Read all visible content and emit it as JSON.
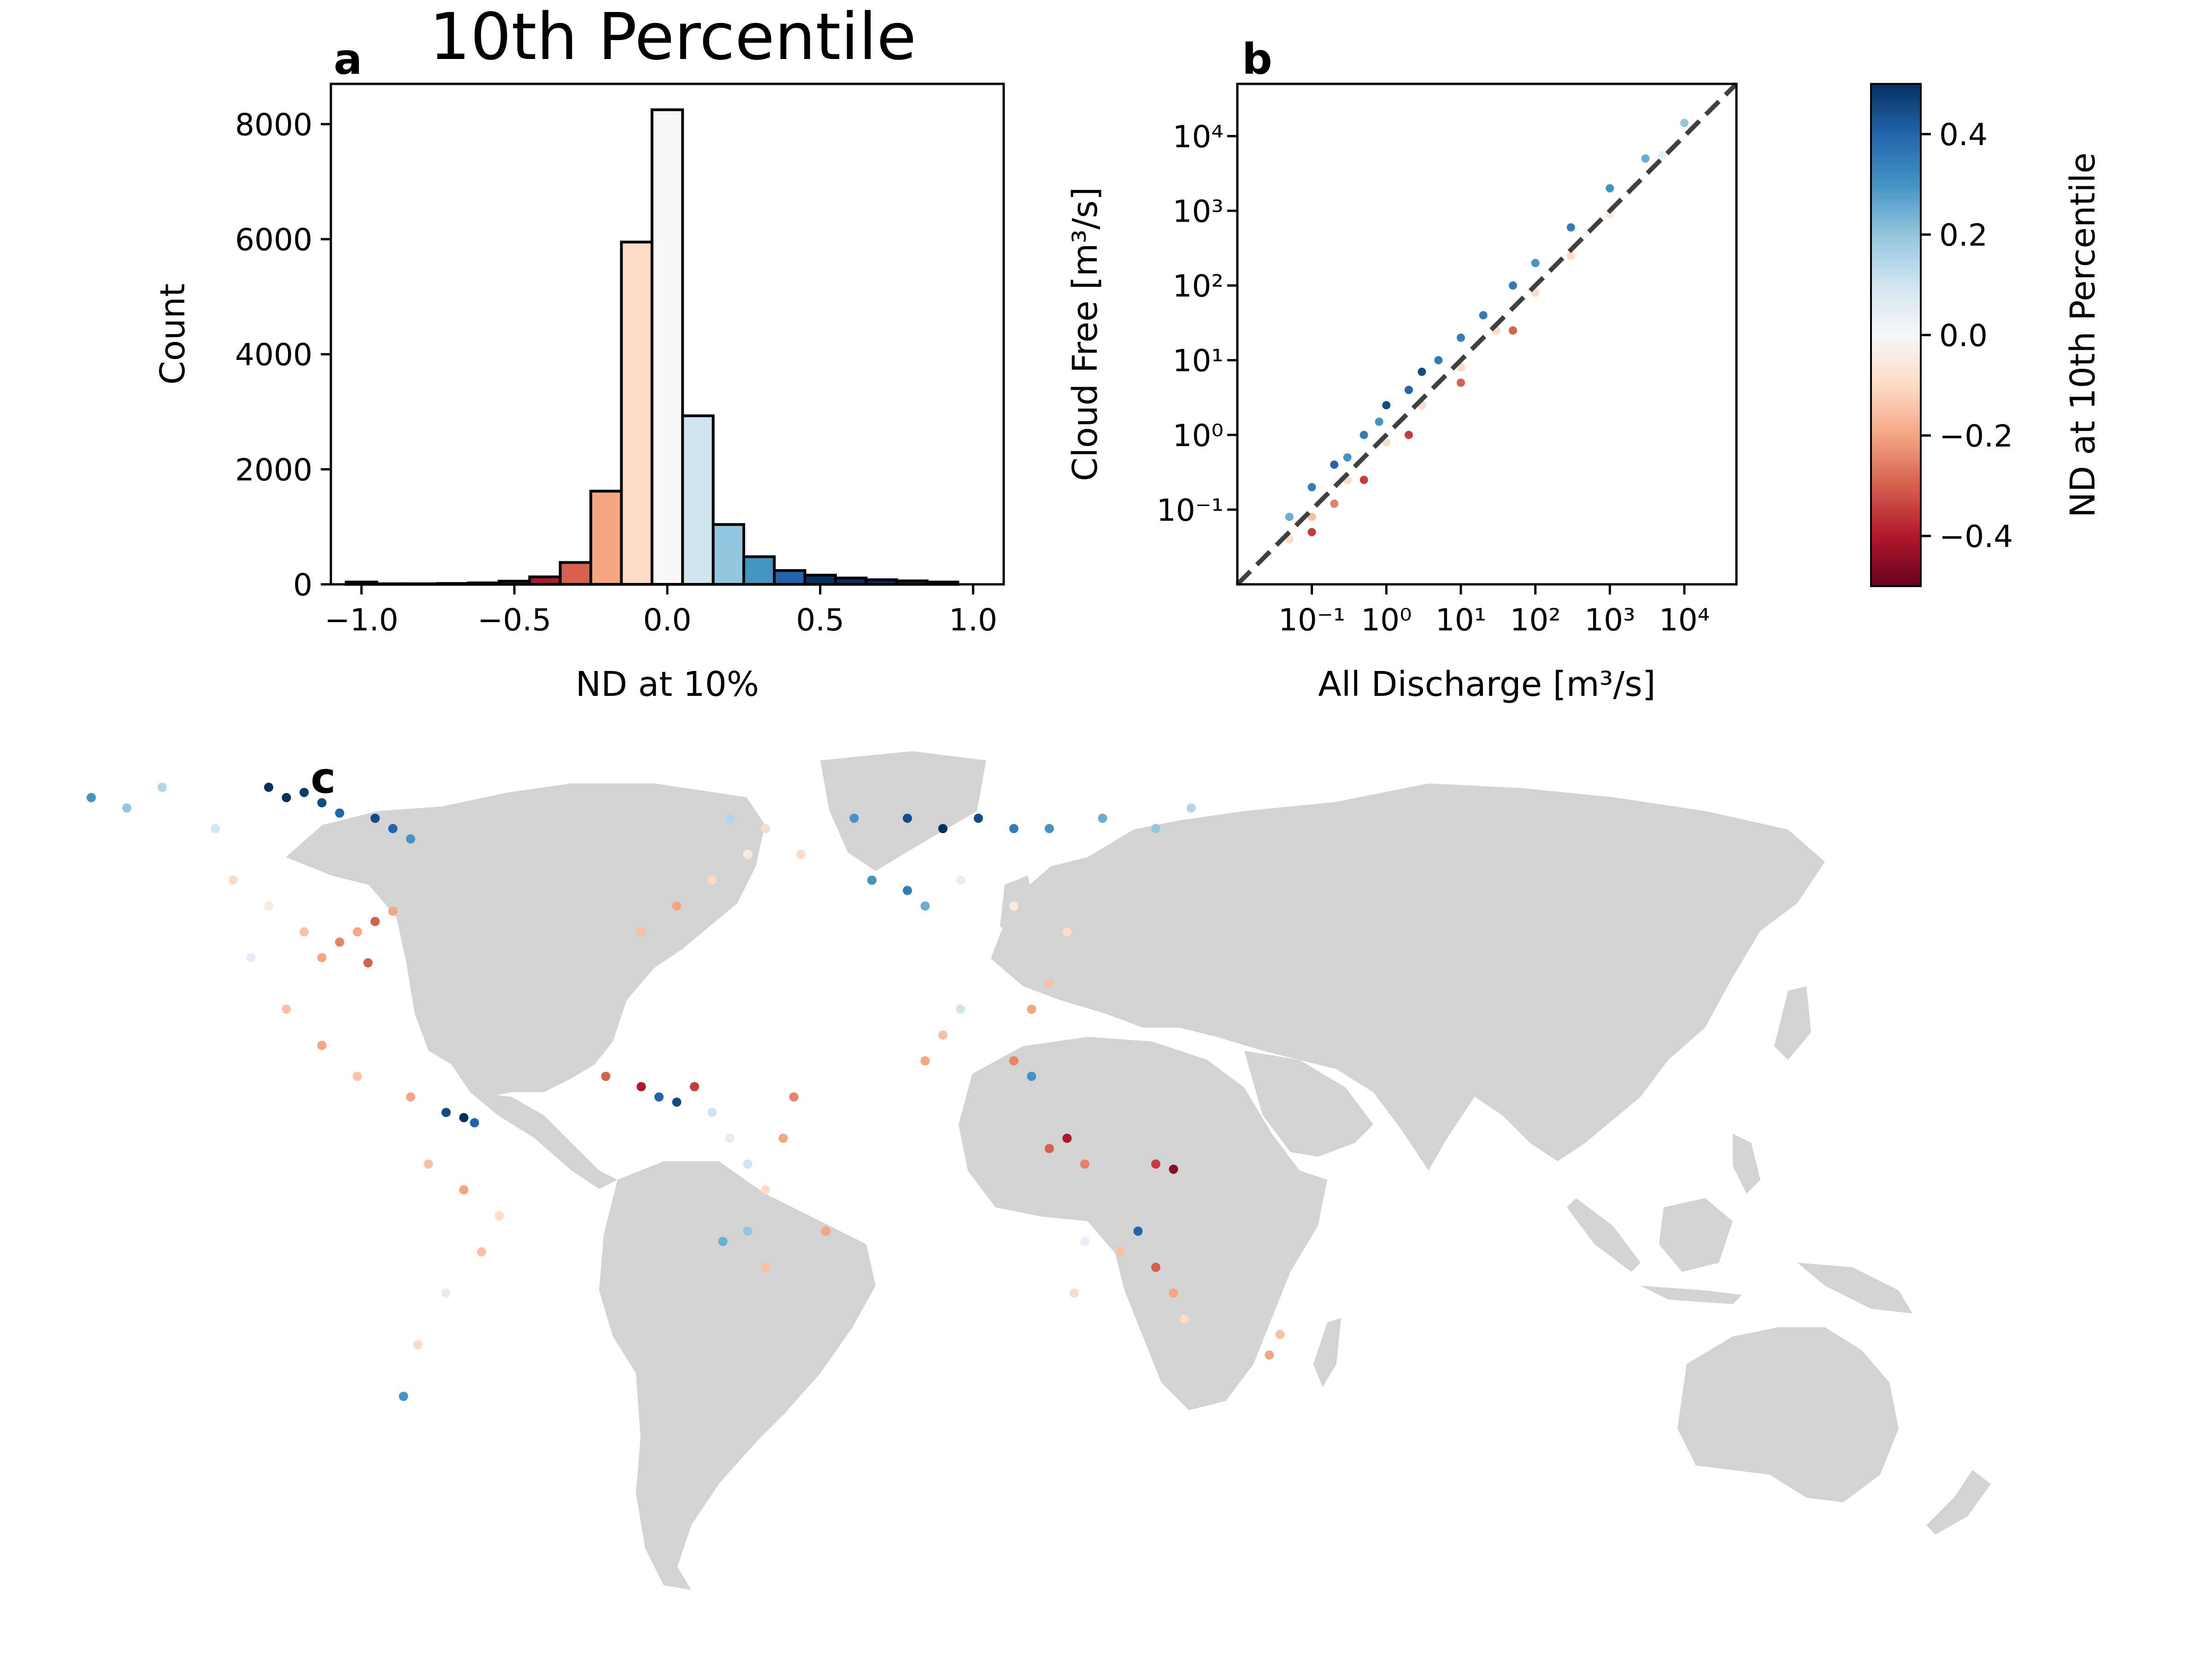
{
  "figure": {
    "title": "10th Percentile",
    "panel_labels": [
      "a",
      "b",
      "c"
    ]
  },
  "colors": {
    "map_land": "#d3d3d3",
    "colormap": "RdBu",
    "bar_edge": "#000000",
    "one_to_one_line": "#404040"
  },
  "chart_data": [
    {
      "type": "bar",
      "panel": "a",
      "title": "10th Percentile",
      "xlabel": "ND at 10%",
      "ylabel": "Count",
      "xlim": [
        -1.1,
        1.1
      ],
      "ylim": [
        0,
        8700
      ],
      "xticks": [
        -1.0,
        -0.5,
        0.0,
        0.5,
        1.0
      ],
      "xtick_labels": [
        "−1.0",
        "−0.5",
        "0.0",
        "0.5",
        "1.0"
      ],
      "yticks": [
        0,
        2000,
        4000,
        6000,
        8000
      ],
      "ytick_labels": [
        "0",
        "2000",
        "4000",
        "6000",
        "8000"
      ],
      "bin_width": 0.1,
      "bin_centers": [
        -1.0,
        -0.9,
        -0.8,
        -0.7,
        -0.6,
        -0.5,
        -0.4,
        -0.3,
        -0.2,
        -0.1,
        0.0,
        0.1,
        0.2,
        0.3,
        0.4,
        0.5,
        0.6,
        0.7,
        0.8,
        0.9
      ],
      "values": [
        40,
        10,
        10,
        15,
        25,
        55,
        130,
        380,
        1620,
        5950,
        8250,
        2930,
        1040,
        480,
        240,
        160,
        110,
        80,
        60,
        40
      ]
    },
    {
      "type": "scatter",
      "panel": "b",
      "xlabel": "All Discharge [m³/s]",
      "ylabel": "Cloud Free [m³/s]",
      "xscale": "log",
      "yscale": "log",
      "xlim": [
        0.01,
        50000
      ],
      "ylim": [
        0.01,
        50000
      ],
      "xtick_labels": [
        "10⁻¹",
        "10⁰",
        "10¹",
        "10²",
        "10³",
        "10⁴"
      ],
      "ytick_labels": [
        "10⁻¹",
        "10⁰",
        "10¹",
        "10²",
        "10³",
        "10⁴"
      ],
      "reference_line": "1:1 dashed",
      "color_by": "ND at 10th Percentile",
      "points": [
        {
          "x": 0.05,
          "y": 0.08,
          "nd": 0.25
        },
        {
          "x": 0.1,
          "y": 0.2,
          "nd": 0.35
        },
        {
          "x": 0.2,
          "y": 0.4,
          "nd": 0.4
        },
        {
          "x": 0.3,
          "y": 0.5,
          "nd": 0.3
        },
        {
          "x": 0.5,
          "y": 1.0,
          "nd": 0.35
        },
        {
          "x": 0.8,
          "y": 1.5,
          "nd": 0.3
        },
        {
          "x": 1.0,
          "y": 2.5,
          "nd": 0.45
        },
        {
          "x": 2.0,
          "y": 4.0,
          "nd": 0.4
        },
        {
          "x": 3.0,
          "y": 7.0,
          "nd": 0.45
        },
        {
          "x": 5.0,
          "y": 10.0,
          "nd": 0.35
        },
        {
          "x": 10.0,
          "y": 20.0,
          "nd": 0.35
        },
        {
          "x": 20.0,
          "y": 40.0,
          "nd": 0.35
        },
        {
          "x": 50.0,
          "y": 100.0,
          "nd": 0.35
        },
        {
          "x": 100.0,
          "y": 200.0,
          "nd": 0.3
        },
        {
          "x": 300.0,
          "y": 600.0,
          "nd": 0.35
        },
        {
          "x": 1000.0,
          "y": 2000.0,
          "nd": 0.3
        },
        {
          "x": 3000.0,
          "y": 5000.0,
          "nd": 0.25
        },
        {
          "x": 10000.0,
          "y": 15000.0,
          "nd": 0.2
        },
        {
          "x": 0.05,
          "y": 0.04,
          "nd": -0.1
        },
        {
          "x": 0.1,
          "y": 0.08,
          "nd": -0.15
        },
        {
          "x": 0.3,
          "y": 0.25,
          "nd": -0.1
        },
        {
          "x": 1.0,
          "y": 0.8,
          "nd": -0.1
        },
        {
          "x": 3.0,
          "y": 2.5,
          "nd": -0.1
        },
        {
          "x": 10.0,
          "y": 8.0,
          "nd": -0.1
        },
        {
          "x": 30.0,
          "y": 25.0,
          "nd": -0.1
        },
        {
          "x": 100.0,
          "y": 80.0,
          "nd": -0.1
        },
        {
          "x": 300.0,
          "y": 250.0,
          "nd": -0.1
        },
        {
          "x": 1000.0,
          "y": 900.0,
          "nd": -0.05
        },
        {
          "x": 0.1,
          "y": 0.05,
          "nd": -0.35
        },
        {
          "x": 0.5,
          "y": 0.25,
          "nd": -0.35
        },
        {
          "x": 2.0,
          "y": 1.0,
          "nd": -0.35
        },
        {
          "x": 10.0,
          "y": 5.0,
          "nd": -0.3
        },
        {
          "x": 50.0,
          "y": 25.0,
          "nd": -0.3
        },
        {
          "x": 0.2,
          "y": 0.12,
          "nd": -0.25
        },
        {
          "x": 5.0,
          "y": 5.0,
          "nd": 0.0
        },
        {
          "x": 50.0,
          "y": 50.0,
          "nd": 0.0
        },
        {
          "x": 500.0,
          "y": 520.0,
          "nd": 0.02
        },
        {
          "x": 5000.0,
          "y": 5500.0,
          "nd": 0.05
        }
      ]
    },
    {
      "type": "heatmap",
      "panel": "c",
      "description_kind": "world map of gauges colored by ND at 10th percentile",
      "colorbar": {
        "label": "ND at 10th Percentile",
        "range": [
          -0.5,
          0.5
        ],
        "ticks": [
          0.4,
          0.2,
          0.0,
          -0.2,
          -0.4
        ],
        "tick_labels": [
          "0.4",
          "0.2",
          "0.0",
          "−0.2",
          "−0.4"
        ]
      },
      "stations": [
        {
          "lon": -160,
          "lat": 66,
          "nd": 0.3
        },
        {
          "lon": -150,
          "lat": 64,
          "nd": 0.2
        },
        {
          "lon": -140,
          "lat": 68,
          "nd": 0.15
        },
        {
          "lon": -125,
          "lat": 60,
          "nd": 0.1
        },
        {
          "lon": -110,
          "lat": 68,
          "nd": 0.5
        },
        {
          "lon": -105,
          "lat": 66,
          "nd": 0.5
        },
        {
          "lon": -100,
          "lat": 67,
          "nd": 0.48
        },
        {
          "lon": -95,
          "lat": 65,
          "nd": 0.45
        },
        {
          "lon": -90,
          "lat": 63,
          "nd": 0.4
        },
        {
          "lon": -80,
          "lat": 62,
          "nd": 0.45
        },
        {
          "lon": -75,
          "lat": 60,
          "nd": 0.4
        },
        {
          "lon": -70,
          "lat": 58,
          "nd": 0.3
        },
        {
          "lon": -120,
          "lat": 50,
          "nd": -0.1
        },
        {
          "lon": -110,
          "lat": 45,
          "nd": -0.05
        },
        {
          "lon": -100,
          "lat": 40,
          "nd": -0.15
        },
        {
          "lon": -95,
          "lat": 35,
          "nd": -0.2
        },
        {
          "lon": -90,
          "lat": 38,
          "nd": -0.25
        },
        {
          "lon": -85,
          "lat": 40,
          "nd": -0.2
        },
        {
          "lon": -80,
          "lat": 42,
          "nd": -0.3
        },
        {
          "lon": -75,
          "lat": 44,
          "nd": -0.2
        },
        {
          "lon": -82,
          "lat": 34,
          "nd": -0.3
        },
        {
          "lon": -115,
          "lat": 35,
          "nd": 0.05
        },
        {
          "lon": -105,
          "lat": 25,
          "nd": -0.15
        },
        {
          "lon": -95,
          "lat": 18,
          "nd": -0.2
        },
        {
          "lon": -85,
          "lat": 12,
          "nd": -0.15
        },
        {
          "lon": -70,
          "lat": 8,
          "nd": -0.2
        },
        {
          "lon": -60,
          "lat": 5,
          "nd": 0.45
        },
        {
          "lon": -55,
          "lat": 4,
          "nd": 0.5
        },
        {
          "lon": -52,
          "lat": 3,
          "nd": 0.4
        },
        {
          "lon": -65,
          "lat": -5,
          "nd": -0.15
        },
        {
          "lon": -55,
          "lat": -10,
          "nd": -0.2
        },
        {
          "lon": -45,
          "lat": -15,
          "nd": -0.1
        },
        {
          "lon": -50,
          "lat": -22,
          "nd": -0.15
        },
        {
          "lon": -60,
          "lat": -30,
          "nd": 0.05
        },
        {
          "lon": -68,
          "lat": -40,
          "nd": -0.1
        },
        {
          "lon": -72,
          "lat": -50,
          "nd": 0.3
        },
        {
          "lon": -5,
          "lat": 40,
          "nd": -0.15
        },
        {
          "lon": 5,
          "lat": 45,
          "nd": -0.2
        },
        {
          "lon": 15,
          "lat": 50,
          "nd": -0.1
        },
        {
          "lon": 25,
          "lat": 55,
          "nd": -0.05
        },
        {
          "lon": 20,
          "lat": 62,
          "nd": 0.15
        },
        {
          "lon": 30,
          "lat": 60,
          "nd": -0.1
        },
        {
          "lon": 40,
          "lat": 55,
          "nd": -0.1
        },
        {
          "lon": 55,
          "lat": 62,
          "nd": 0.3
        },
        {
          "lon": 70,
          "lat": 62,
          "nd": 0.45
        },
        {
          "lon": 80,
          "lat": 60,
          "nd": 0.5
        },
        {
          "lon": 90,
          "lat": 62,
          "nd": 0.45
        },
        {
          "lon": 100,
          "lat": 60,
          "nd": 0.35
        },
        {
          "lon": 110,
          "lat": 60,
          "nd": 0.3
        },
        {
          "lon": 125,
          "lat": 62,
          "nd": 0.25
        },
        {
          "lon": 140,
          "lat": 60,
          "nd": 0.2
        },
        {
          "lon": 150,
          "lat": 64,
          "nd": 0.15
        },
        {
          "lon": 60,
          "lat": 50,
          "nd": 0.3
        },
        {
          "lon": 70,
          "lat": 48,
          "nd": 0.35
        },
        {
          "lon": 75,
          "lat": 45,
          "nd": 0.25
        },
        {
          "lon": 85,
          "lat": 50,
          "nd": 0.05
        },
        {
          "lon": 100,
          "lat": 45,
          "nd": -0.05
        },
        {
          "lon": 115,
          "lat": 40,
          "nd": -0.1
        },
        {
          "lon": 110,
          "lat": 30,
          "nd": -0.15
        },
        {
          "lon": 105,
          "lat": 25,
          "nd": -0.2
        },
        {
          "lon": 100,
          "lat": 15,
          "nd": -0.25
        },
        {
          "lon": 105,
          "lat": 12,
          "nd": 0.3
        },
        {
          "lon": 80,
          "lat": 20,
          "nd": -0.15
        },
        {
          "lon": 75,
          "lat": 15,
          "nd": -0.2
        },
        {
          "lon": 85,
          "lat": 25,
          "nd": 0.1
        },
        {
          "lon": 110,
          "lat": -2,
          "nd": -0.3
        },
        {
          "lon": 115,
          "lat": 0,
          "nd": -0.4
        },
        {
          "lon": 120,
          "lat": -5,
          "nd": -0.25
        },
        {
          "lon": 140,
          "lat": -5,
          "nd": -0.35
        },
        {
          "lon": 145,
          "lat": -6,
          "nd": -0.45
        },
        {
          "lon": -15,
          "lat": 12,
          "nd": -0.3
        },
        {
          "lon": -5,
          "lat": 10,
          "nd": -0.4
        },
        {
          "lon": 0,
          "lat": 8,
          "nd": 0.4
        },
        {
          "lon": 5,
          "lat": 7,
          "nd": 0.45
        },
        {
          "lon": 10,
          "lat": 10,
          "nd": -0.35
        },
        {
          "lon": 15,
          "lat": 5,
          "nd": 0.1
        },
        {
          "lon": 20,
          "lat": 0,
          "nd": 0.05
        },
        {
          "lon": 25,
          "lat": -5,
          "nd": 0.1
        },
        {
          "lon": 30,
          "lat": -10,
          "nd": -0.1
        },
        {
          "lon": 25,
          "lat": -18,
          "nd": 0.2
        },
        {
          "lon": 18,
          "lat": -20,
          "nd": 0.25
        },
        {
          "lon": 30,
          "lat": -25,
          "nd": -0.15
        },
        {
          "lon": 35,
          "lat": 0,
          "nd": -0.2
        },
        {
          "lon": 38,
          "lat": 8,
          "nd": -0.25
        },
        {
          "lon": 47,
          "lat": -18,
          "nd": -0.2
        },
        {
          "lon": 120,
          "lat": -20,
          "nd": 0.05
        },
        {
          "lon": 130,
          "lat": -22,
          "nd": -0.15
        },
        {
          "lon": 140,
          "lat": -25,
          "nd": -0.3
        },
        {
          "lon": 145,
          "lat": -30,
          "nd": -0.2
        },
        {
          "lon": 148,
          "lat": -35,
          "nd": -0.1
        },
        {
          "lon": 135,
          "lat": -18,
          "nd": 0.4
        },
        {
          "lon": 117,
          "lat": -30,
          "nd": -0.1
        },
        {
          "lon": 172,
          "lat": -42,
          "nd": -0.2
        },
        {
          "lon": 175,
          "lat": -38,
          "nd": -0.15
        }
      ]
    }
  ]
}
